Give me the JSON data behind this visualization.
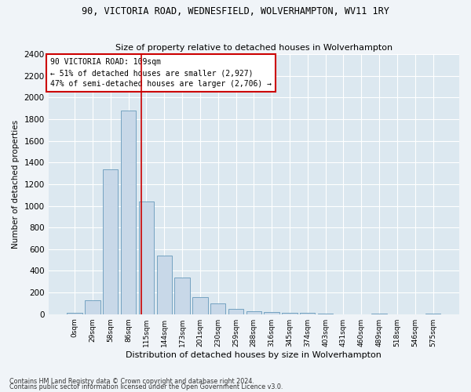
{
  "title1": "90, VICTORIA ROAD, WEDNESFIELD, WOLVERHAMPTON, WV11 1RY",
  "title2": "Size of property relative to detached houses in Wolverhampton",
  "xlabel": "Distribution of detached houses by size in Wolverhampton",
  "ylabel": "Number of detached properties",
  "footer1": "Contains HM Land Registry data © Crown copyright and database right 2024.",
  "footer2": "Contains public sector information licensed under the Open Government Licence v3.0.",
  "annotation_title": "90 VICTORIA ROAD: 109sqm",
  "annotation_line1": "← 51% of detached houses are smaller (2,927)",
  "annotation_line2": "47% of semi-detached houses are larger (2,706) →",
  "bar_categories": [
    "0sqm",
    "29sqm",
    "58sqm",
    "86sqm",
    "115sqm",
    "144sqm",
    "173sqm",
    "201sqm",
    "230sqm",
    "259sqm",
    "288sqm",
    "316sqm",
    "345sqm",
    "374sqm",
    "403sqm",
    "431sqm",
    "460sqm",
    "489sqm",
    "518sqm",
    "546sqm",
    "575sqm"
  ],
  "bar_values": [
    10,
    130,
    1340,
    1880,
    1040,
    540,
    340,
    160,
    100,
    50,
    30,
    20,
    10,
    10,
    5,
    0,
    0,
    5,
    0,
    0,
    5
  ],
  "bar_color": "#c8d8e8",
  "bar_edge_color": "#6699bb",
  "vline_color": "#cc0000",
  "vline_x": 3.72,
  "annotation_box_facecolor": "#ffffff",
  "annotation_box_edgecolor": "#cc0000",
  "fig_facecolor": "#f0f4f8",
  "ax_facecolor": "#dce8f0",
  "grid_color": "#ffffff",
  "ylim": [
    0,
    2400
  ],
  "yticks": [
    0,
    200,
    400,
    600,
    800,
    1000,
    1200,
    1400,
    1600,
    1800,
    2000,
    2200,
    2400
  ]
}
